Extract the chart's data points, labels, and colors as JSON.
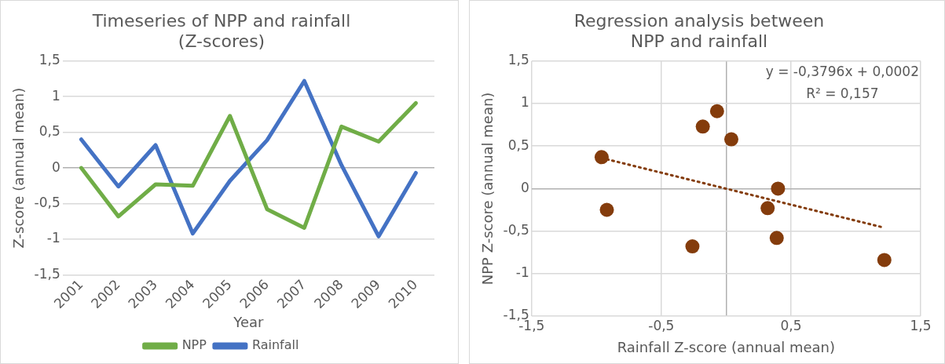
{
  "chart_data": [
    {
      "type": "line",
      "title": "Timeseries of NPP and rainfall (Z-scores)",
      "xlabel": "Year",
      "ylabel": "Z-score (annual mean)",
      "categories": [
        "2001",
        "2002",
        "2003",
        "2004",
        "2005",
        "2006",
        "2007",
        "2008",
        "2009",
        "2010"
      ],
      "series": [
        {
          "name": "NPP",
          "color": "#70ad47",
          "values": [
            0,
            -0.68,
            -0.23,
            -0.25,
            0.73,
            -0.58,
            -0.84,
            0.58,
            0.37,
            0.91
          ]
        },
        {
          "name": "Rainfall",
          "color": "#4472c4",
          "values": [
            0.4,
            -0.26,
            0.32,
            -0.92,
            -0.18,
            0.39,
            1.22,
            0.04,
            -0.96,
            -0.07
          ]
        }
      ],
      "ylim": [
        -1.5,
        1.5
      ],
      "yticks": [
        {
          "value": -1.5,
          "label": "-1,5"
        },
        -1,
        {
          "value": -0.5,
          "label": "-0,5"
        },
        0,
        {
          "value": 0.5,
          "label": "0,5"
        },
        1,
        {
          "value": 1.5,
          "label": "1,5"
        }
      ],
      "grid": "y",
      "legend": "bottom",
      "marker": "none",
      "line_style": "solid"
    },
    {
      "type": "scatter",
      "title": "Regression analysis between NPP and rainfall",
      "xlabel": "Rainfall Z-score (annual mean)",
      "ylabel": "NPP Z-score (annual mean)",
      "series": [
        {
          "type": "scatter",
          "color": "#843c0c",
          "marker": "circle",
          "x": [
            0.4,
            -0.26,
            0.32,
            -0.92,
            -0.18,
            0.39,
            1.22,
            0.04,
            -0.96,
            -0.07
          ],
          "values": [
            0,
            -0.68,
            -0.23,
            -0.25,
            0.73,
            -0.58,
            -0.84,
            0.58,
            0.37,
            0.91
          ]
        },
        {
          "type": "line",
          "color": "#843c0c",
          "line_style": "dotted",
          "marker": "none",
          "x": [
            -0.96,
            1.22
          ],
          "values": [
            0.36,
            -0.46
          ]
        }
      ],
      "annotations": [
        "y = -0,3796x + 0,0002",
        "R² = 0,157"
      ],
      "xlim": [
        -1.5,
        1.5
      ],
      "xticks": [
        {
          "value": -1.5,
          "label": "-1,5"
        },
        {
          "value": -0.5,
          "label": "-0,5"
        },
        {
          "value": 0,
          "label": null
        },
        {
          "value": 0.5,
          "label": "0,5"
        },
        {
          "value": 1.5,
          "label": "1,5"
        }
      ],
      "ylim": [
        -1.5,
        1.5
      ],
      "yticks": [
        {
          "value": -1.5,
          "label": "-1,5"
        },
        -1,
        {
          "value": -0.5,
          "label": "-0,5"
        },
        0,
        {
          "value": 0.5,
          "label": "0,5"
        },
        1,
        {
          "value": 1.5,
          "label": "1,5"
        }
      ],
      "grid": true,
      "legend": false
    }
  ]
}
